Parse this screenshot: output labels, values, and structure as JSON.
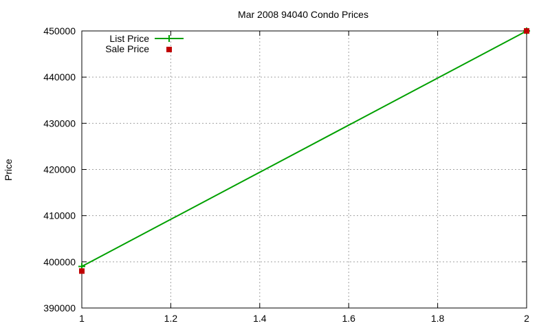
{
  "chart_data": {
    "type": "line",
    "title": "Mar 2008 94040 Condo Prices",
    "xlabel": "",
    "ylabel": "Price",
    "xlim": [
      1,
      2
    ],
    "ylim": [
      390000,
      450000
    ],
    "xticks": [
      1,
      1.2,
      1.4,
      1.6,
      1.8,
      2
    ],
    "xtick_labels": [
      "1",
      "1.2",
      "1.4",
      "1.6",
      "1.8",
      "2"
    ],
    "yticks": [
      390000,
      400000,
      410000,
      420000,
      430000,
      440000,
      450000
    ],
    "ytick_labels": [
      "390000",
      "400000",
      "410000",
      "420000",
      "430000",
      "440000",
      "450000"
    ],
    "grid": true,
    "legend_position": "top-left",
    "series": [
      {
        "name": "List Price",
        "style": "linespoints",
        "color": "#00a000",
        "x": [
          1,
          2
        ],
        "values": [
          399000,
          450000
        ]
      },
      {
        "name": "Sale Price",
        "style": "points",
        "color": "#c00000",
        "x": [
          1,
          2
        ],
        "values": [
          398000,
          450000
        ]
      }
    ]
  }
}
